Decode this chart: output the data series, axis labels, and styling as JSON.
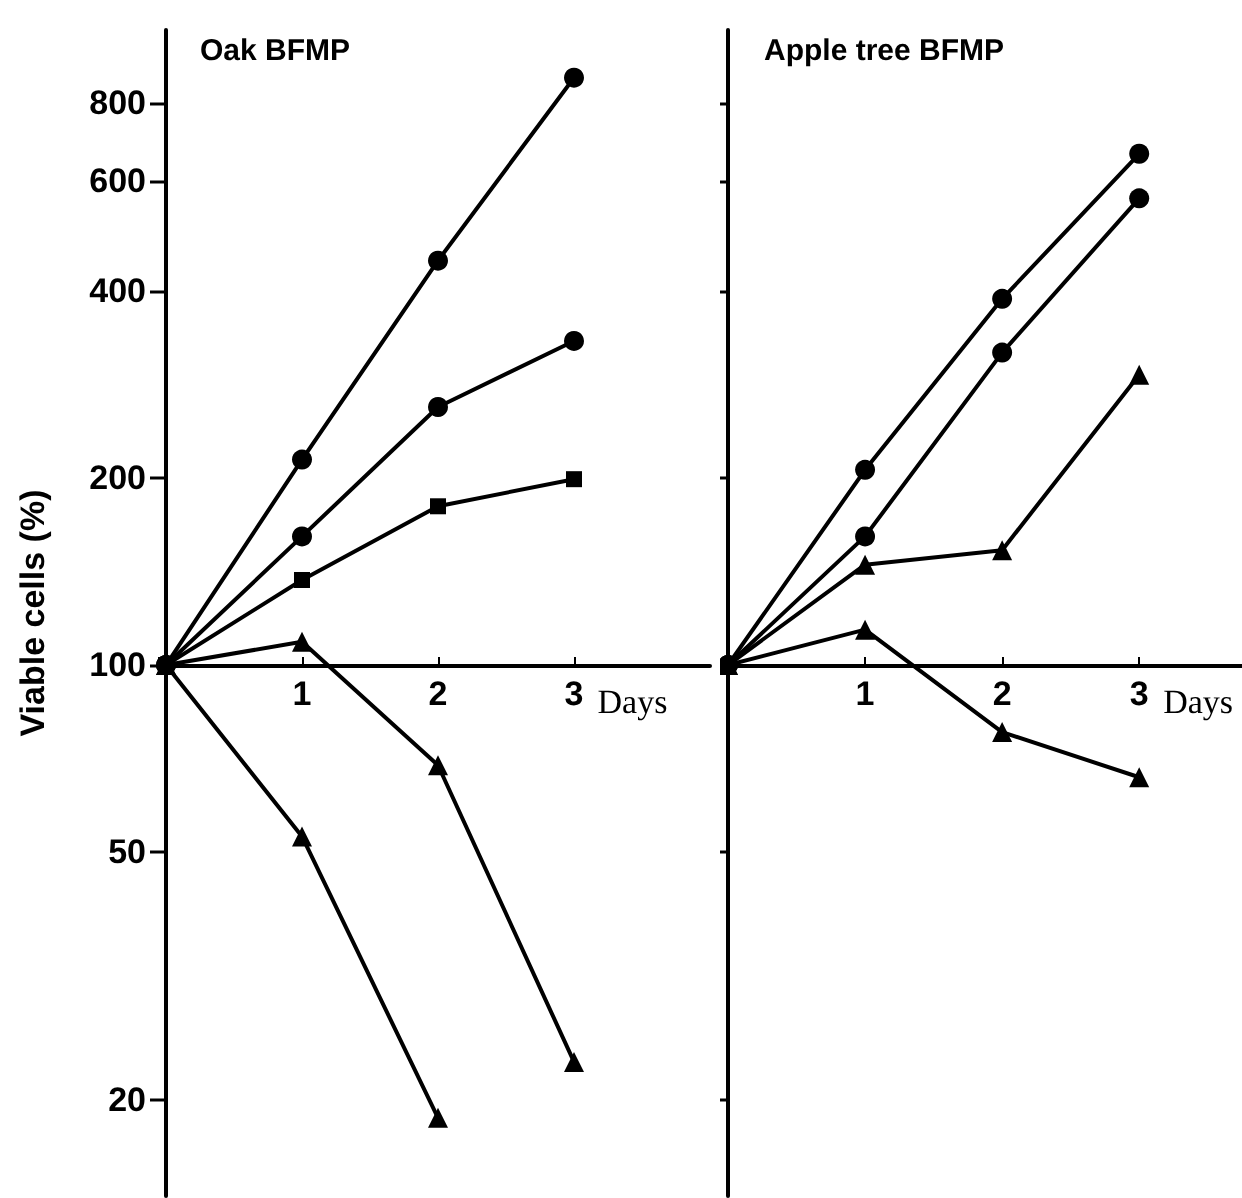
{
  "chart_data": [
    {
      "type": "line",
      "title": "Oak BFMP",
      "xlabel": "Days",
      "ylabel": "Viable cells (%)",
      "x": [
        0,
        1,
        2,
        3
      ],
      "xlim": [
        0,
        4
      ],
      "xticks": [
        1,
        2,
        3
      ],
      "ylim": [
        14,
        1050
      ],
      "yticks": [
        20,
        50,
        100,
        200,
        400,
        600,
        800
      ],
      "log": true,
      "series": [
        {
          "color": "#000000",
          "marker": "circle",
          "values": [
            100,
            214,
            447,
            880
          ]
        },
        {
          "color": "#000000",
          "marker": "circle",
          "values": [
            100,
            161,
            260,
            332
          ]
        },
        {
          "color": "#000000",
          "marker": "square",
          "values": [
            100,
            137,
            180,
            199
          ]
        },
        {
          "color": "#000000",
          "marker": "triangle",
          "values": [
            100,
            109,
            69,
            23
          ]
        },
        {
          "color": "#000000",
          "marker": "triangle",
          "values": [
            100,
            53,
            18.7,
            null
          ]
        }
      ]
    },
    {
      "type": "line",
      "title": "Apple tree BFMP",
      "xlabel": "Days",
      "x": [
        0,
        1,
        2,
        3
      ],
      "xlim": [
        0,
        3.75
      ],
      "xticks": [
        1,
        2,
        3
      ],
      "ylim": [
        14,
        1050
      ],
      "yticks": [
        20,
        50,
        100,
        200,
        400,
        600,
        800
      ],
      "log": true,
      "tick_labels": "x",
      "series": [
        {
          "color": "#000000",
          "marker": "circle",
          "values": [
            100,
            206,
            388,
            664
          ]
        },
        {
          "color": "#000000",
          "marker": "circle",
          "values": [
            100,
            161,
            318,
            563
          ]
        },
        {
          "color": "#000000",
          "marker": "triangle",
          "values": [
            100,
            145,
            153,
            293
          ]
        },
        {
          "color": "#000000",
          "marker": "triangle",
          "values": [
            100,
            114,
            78,
            66
          ]
        }
      ]
    }
  ]
}
